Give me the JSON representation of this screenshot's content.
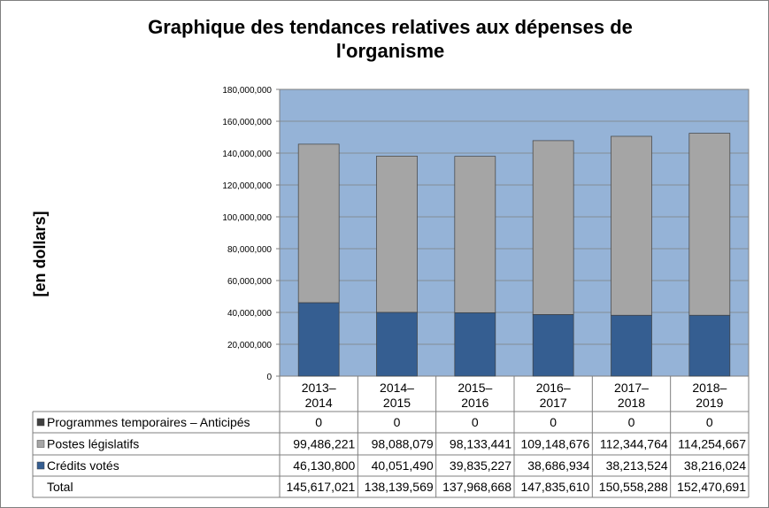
{
  "chart_data": {
    "type": "bar",
    "stacked": true,
    "title": "Graphique des tendances relatives aux dépenses de l'organisme",
    "ylabel": "[en dollars]",
    "ylim": [
      0,
      180000000
    ],
    "yticks": [
      "0",
      "20,000,000",
      "40,000,000",
      "60,000,000",
      "80,000,000",
      "100,000,000",
      "120,000,000",
      "140,000,000",
      "160,000,000",
      "180,000,000"
    ],
    "ytick_values": [
      0,
      20000000,
      40000000,
      60000000,
      80000000,
      100000000,
      120000000,
      140000000,
      160000000,
      180000000
    ],
    "grid": true,
    "legend": "data-table",
    "categories": [
      [
        "2013–",
        "2014"
      ],
      [
        "2014–",
        "2015"
      ],
      [
        "2015–",
        "2016"
      ],
      [
        "2016–",
        "2017"
      ],
      [
        "2017–",
        "2018"
      ],
      [
        "2018–",
        "2019"
      ]
    ],
    "series": [
      {
        "name": "Programmes temporaires – Anticipés",
        "color": "#404040",
        "values": [
          0,
          0,
          0,
          0,
          0,
          0
        ],
        "labels": [
          "0",
          "0",
          "0",
          "0",
          "0",
          "0"
        ]
      },
      {
        "name": "Postes législatifs",
        "color": "#a5a5a5",
        "values": [
          99486221,
          98088079,
          98133441,
          109148676,
          112344764,
          114254667
        ],
        "labels": [
          "99,486,221",
          "98,088,079",
          "98,133,441",
          "109,148,676",
          "112,344,764",
          "114,254,667"
        ]
      },
      {
        "name": "Crédits votés",
        "color": "#355e91",
        "values": [
          46130800,
          40051490,
          39835227,
          38686934,
          38213524,
          38216024
        ],
        "labels": [
          "46,130,800",
          "40,051,490",
          "39,835,227",
          "38,686,934",
          "38,213,524",
          "38,216,024"
        ]
      }
    ],
    "total": {
      "name": "Total",
      "labels": [
        "145,617,021",
        "138,139,569",
        "137,968,668",
        "147,835,610",
        "150,558,288",
        "152,470,691"
      ]
    },
    "plot_background": "#95b3d7"
  }
}
